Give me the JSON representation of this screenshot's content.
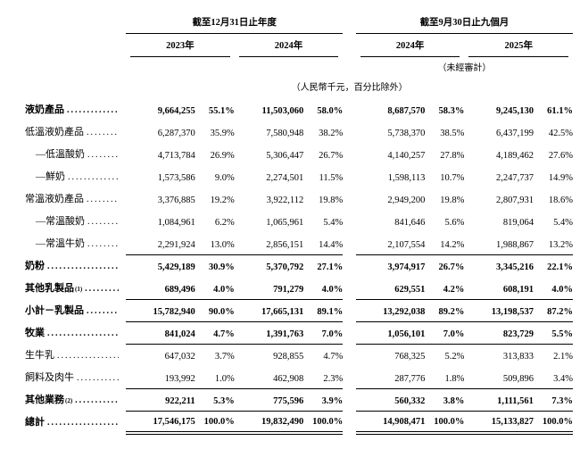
{
  "colors": {
    "background": "#ffffff",
    "text": "#000000",
    "rule": "#000000"
  },
  "table": {
    "dot_leader": "........................................",
    "header": {
      "group1": "截至12月31日止年度",
      "group2": "截至9月30日止九個月",
      "years": [
        "2023年",
        "2024年",
        "2024年",
        "2025年"
      ],
      "unaudited_note": "（未經審計）",
      "unit_note": "（人民幣千元，百分比除外）"
    },
    "rows": [
      {
        "label": "液奶產品",
        "sup": "",
        "indent": 0,
        "bold": true,
        "rule": "",
        "values": [
          "9,664,255",
          "55.1%",
          "11,503,060",
          "58.0%",
          "8,687,570",
          "58.3%",
          "9,245,130",
          "61.1%"
        ]
      },
      {
        "label": "低溫液奶產品",
        "sup": "",
        "indent": 0,
        "bold": false,
        "rule": "",
        "values": [
          "6,287,370",
          "35.9%",
          "7,580,948",
          "38.2%",
          "5,738,370",
          "38.5%",
          "6,437,199",
          "42.5%"
        ]
      },
      {
        "label": "—低溫酸奶",
        "sup": "",
        "indent": 1,
        "bold": false,
        "rule": "",
        "values": [
          "4,713,784",
          "26.9%",
          "5,306,447",
          "26.7%",
          "4,140,257",
          "27.8%",
          "4,189,462",
          "27.6%"
        ]
      },
      {
        "label": "—鮮奶",
        "sup": "",
        "indent": 1,
        "bold": false,
        "rule": "",
        "values": [
          "1,573,586",
          "9.0%",
          "2,274,501",
          "11.5%",
          "1,598,113",
          "10.7%",
          "2,247,737",
          "14.9%"
        ]
      },
      {
        "label": "常溫液奶產品",
        "sup": "",
        "indent": 0,
        "bold": false,
        "rule": "",
        "values": [
          "3,376,885",
          "19.2%",
          "3,922,112",
          "19.8%",
          "2,949,200",
          "19.8%",
          "2,807,931",
          "18.6%"
        ]
      },
      {
        "label": "—常溫酸奶",
        "sup": "",
        "indent": 1,
        "bold": false,
        "rule": "",
        "values": [
          "1,084,961",
          "6.2%",
          "1,065,961",
          "5.4%",
          "841,646",
          "5.6%",
          "819,064",
          "5.4%"
        ]
      },
      {
        "label": "—常溫牛奶",
        "sup": "",
        "indent": 1,
        "bold": false,
        "rule": "single",
        "values": [
          "2,291,924",
          "13.0%",
          "2,856,151",
          "14.4%",
          "2,107,554",
          "14.2%",
          "1,988,867",
          "13.2%"
        ]
      },
      {
        "label": "奶粉",
        "sup": "",
        "indent": 0,
        "bold": true,
        "rule": "",
        "values": [
          "5,429,189",
          "30.9%",
          "5,370,792",
          "27.1%",
          "3,974,917",
          "26.7%",
          "3,345,216",
          "22.1%"
        ]
      },
      {
        "label": "其他乳製品",
        "sup": "(1)",
        "indent": 0,
        "bold": true,
        "rule": "single",
        "values": [
          "689,496",
          "4.0%",
          "791,279",
          "4.0%",
          "629,551",
          "4.2%",
          "608,191",
          "4.0%"
        ]
      },
      {
        "label": "小計－乳製品",
        "sup": "",
        "indent": 0,
        "bold": true,
        "rule": "single",
        "values": [
          "15,782,940",
          "90.0%",
          "17,665,131",
          "89.1%",
          "13,292,038",
          "89.2%",
          "13,198,537",
          "87.2%"
        ]
      },
      {
        "label": "牧業",
        "sup": "",
        "indent": 0,
        "bold": true,
        "rule": "single",
        "values": [
          "841,024",
          "4.7%",
          "1,391,763",
          "7.0%",
          "1,056,101",
          "7.0%",
          "823,729",
          "5.5%"
        ]
      },
      {
        "label": "生牛乳",
        "sup": "",
        "indent": 0,
        "bold": false,
        "rule": "",
        "values": [
          "647,032",
          "3.7%",
          "928,855",
          "4.7%",
          "768,325",
          "5.2%",
          "313,833",
          "2.1%"
        ]
      },
      {
        "label": "飼料及肉牛",
        "sup": "",
        "indent": 0,
        "bold": false,
        "rule": "single",
        "values": [
          "193,992",
          "1.0%",
          "462,908",
          "2.3%",
          "287,776",
          "1.8%",
          "509,896",
          "3.4%"
        ]
      },
      {
        "label": "其他業務",
        "sup": "(2)",
        "indent": 0,
        "bold": true,
        "rule": "single",
        "values": [
          "922,211",
          "5.3%",
          "775,596",
          "3.9%",
          "560,332",
          "3.8%",
          "1,111,561",
          "7.3%"
        ]
      },
      {
        "label": "總計",
        "sup": "",
        "indent": 0,
        "bold": true,
        "rule": "double",
        "values": [
          "17,546,175",
          "100.0%",
          "19,832,490",
          "100.0%",
          "14,908,471",
          "100.0%",
          "15,133,827",
          "100.0%"
        ]
      }
    ]
  }
}
